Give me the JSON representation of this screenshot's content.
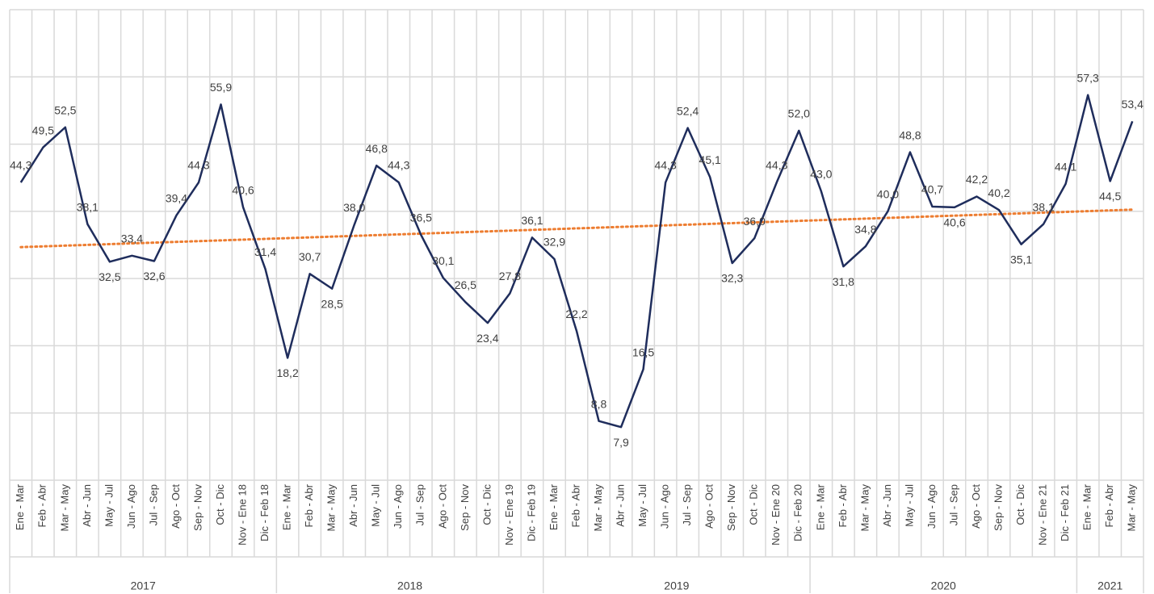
{
  "chart_data": {
    "type": "line",
    "categories": [
      "Ene - Mar",
      "Feb - Abr",
      "Mar - May",
      "Abr - Jun",
      "May - Jul",
      "Jun - Ago",
      "Jul - Sep",
      "Ago - Oct",
      "Sep - Nov",
      "Oct - Dic",
      "Nov - Ene 18",
      "Dic - Feb 18",
      "Ene - Mar",
      "Feb - Abr",
      "Mar - May",
      "Abr - Jun",
      "May - Jul",
      "Jun - Ago",
      "Jul - Sep",
      "Ago - Oct",
      "Sep - Nov",
      "Oct - Dic",
      "Nov - Ene 19",
      "Dic - Feb 19",
      "Ene - Mar",
      "Feb - Abr",
      "Mar - May",
      "Abr - Jun",
      "May - Jul",
      "Jun - Ago",
      "Jul - Sep",
      "Ago - Oct",
      "Sep - Nov",
      "Oct - Dic",
      "Nov - Ene 20",
      "Dic - Feb 20",
      "Ene - Mar",
      "Feb - Abr",
      "Mar - May",
      "Abr - Jun",
      "May - Jul",
      "Jun - Ago",
      "Jul - Sep",
      "Ago - Oct",
      "Sep - Nov",
      "Oct - Dic",
      "Nov - Ene 21",
      "Dic - Feb 21",
      "Ene - Mar",
      "Feb - Abr",
      "Mar - May"
    ],
    "category_groups": [
      "2017",
      "2017",
      "2017",
      "2017",
      "2017",
      "2017",
      "2017",
      "2017",
      "2017",
      "2017",
      "2017",
      "2017",
      "2018",
      "2018",
      "2018",
      "2018",
      "2018",
      "2018",
      "2018",
      "2018",
      "2018",
      "2018",
      "2018",
      "2018",
      "2019",
      "2019",
      "2019",
      "2019",
      "2019",
      "2019",
      "2019",
      "2019",
      "2019",
      "2019",
      "2019",
      "2019",
      "2020",
      "2020",
      "2020",
      "2020",
      "2020",
      "2020",
      "2020",
      "2020",
      "2020",
      "2020",
      "2020",
      "2020",
      "2021",
      "2021",
      "2021"
    ],
    "values": [
      44.3,
      49.5,
      52.5,
      38.1,
      32.5,
      33.4,
      32.6,
      39.4,
      44.3,
      55.9,
      40.6,
      31.4,
      18.2,
      30.7,
      28.5,
      38.0,
      46.8,
      44.3,
      36.5,
      30.1,
      26.5,
      23.4,
      27.8,
      36.1,
      32.9,
      22.2,
      8.8,
      7.9,
      16.5,
      44.3,
      52.4,
      45.1,
      32.3,
      36.0,
      44.3,
      52.0,
      43.0,
      31.8,
      34.8,
      40.0,
      48.8,
      40.7,
      40.6,
      42.2,
      40.2,
      35.1,
      38.1,
      44.1,
      57.3,
      44.5,
      53.4
    ],
    "value_labels": [
      "44,3",
      "49,5",
      "52,5",
      "38,1",
      "32,5",
      "33,4",
      "32,6",
      "39,4",
      "44,3",
      "55,9",
      "40,6",
      "31,4",
      "18,2",
      "30,7",
      "28,5",
      "38,0",
      "46,8",
      "44,3",
      "36,5",
      "30,1",
      "26,5",
      "23,4",
      "27,8",
      "36,1",
      "32,9",
      "22,2",
      "8,8",
      "7,9",
      "16,5",
      "44,3",
      "52,4",
      "45,1",
      "32,3",
      "36,0",
      "44,3",
      "52,0",
      "43,0",
      "31,8",
      "34,8",
      "40,0",
      "48,8",
      "40,7",
      "40,6",
      "42,2",
      "40,2",
      "35,1",
      "38,1",
      "44,1",
      "57,3",
      "44,5",
      "53,4"
    ],
    "color": "#1f2d5c",
    "trendline": {
      "type": "linear",
      "color": "#ed7d31"
    },
    "ylim": [
      0,
      70
    ],
    "yticks": [
      0,
      10,
      20,
      30,
      40,
      50,
      60,
      70
    ],
    "grid": true
  }
}
